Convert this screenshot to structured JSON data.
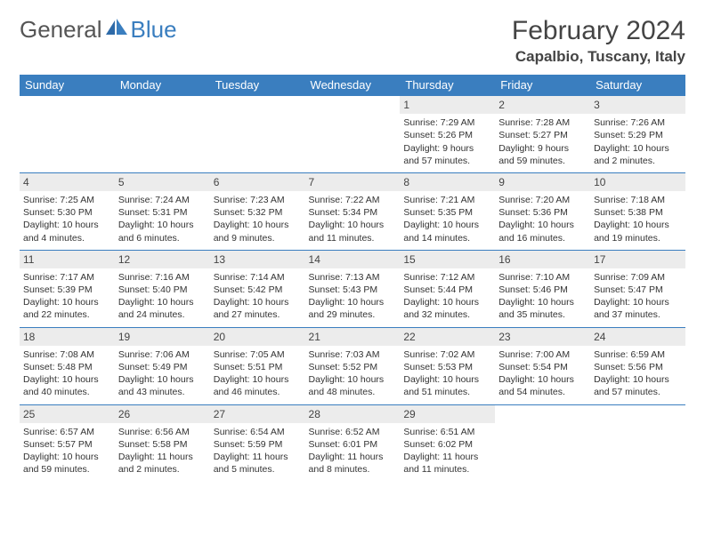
{
  "logo": {
    "text1": "General",
    "text2": "Blue"
  },
  "title": "February 2024",
  "location": "Capalbio, Tuscany, Italy",
  "colors": {
    "header_bg": "#3a7ebf",
    "header_text": "#ffffff",
    "daynum_bg": "#ececec",
    "border": "#3a7ebf"
  },
  "day_headers": [
    "Sunday",
    "Monday",
    "Tuesday",
    "Wednesday",
    "Thursday",
    "Friday",
    "Saturday"
  ],
  "weeks": [
    [
      null,
      null,
      null,
      null,
      {
        "num": "1",
        "sunrise": "Sunrise: 7:29 AM",
        "sunset": "Sunset: 5:26 PM",
        "daylight1": "Daylight: 9 hours",
        "daylight2": "and 57 minutes."
      },
      {
        "num": "2",
        "sunrise": "Sunrise: 7:28 AM",
        "sunset": "Sunset: 5:27 PM",
        "daylight1": "Daylight: 9 hours",
        "daylight2": "and 59 minutes."
      },
      {
        "num": "3",
        "sunrise": "Sunrise: 7:26 AM",
        "sunset": "Sunset: 5:29 PM",
        "daylight1": "Daylight: 10 hours",
        "daylight2": "and 2 minutes."
      }
    ],
    [
      {
        "num": "4",
        "sunrise": "Sunrise: 7:25 AM",
        "sunset": "Sunset: 5:30 PM",
        "daylight1": "Daylight: 10 hours",
        "daylight2": "and 4 minutes."
      },
      {
        "num": "5",
        "sunrise": "Sunrise: 7:24 AM",
        "sunset": "Sunset: 5:31 PM",
        "daylight1": "Daylight: 10 hours",
        "daylight2": "and 6 minutes."
      },
      {
        "num": "6",
        "sunrise": "Sunrise: 7:23 AM",
        "sunset": "Sunset: 5:32 PM",
        "daylight1": "Daylight: 10 hours",
        "daylight2": "and 9 minutes."
      },
      {
        "num": "7",
        "sunrise": "Sunrise: 7:22 AM",
        "sunset": "Sunset: 5:34 PM",
        "daylight1": "Daylight: 10 hours",
        "daylight2": "and 11 minutes."
      },
      {
        "num": "8",
        "sunrise": "Sunrise: 7:21 AM",
        "sunset": "Sunset: 5:35 PM",
        "daylight1": "Daylight: 10 hours",
        "daylight2": "and 14 minutes."
      },
      {
        "num": "9",
        "sunrise": "Sunrise: 7:20 AM",
        "sunset": "Sunset: 5:36 PM",
        "daylight1": "Daylight: 10 hours",
        "daylight2": "and 16 minutes."
      },
      {
        "num": "10",
        "sunrise": "Sunrise: 7:18 AM",
        "sunset": "Sunset: 5:38 PM",
        "daylight1": "Daylight: 10 hours",
        "daylight2": "and 19 minutes."
      }
    ],
    [
      {
        "num": "11",
        "sunrise": "Sunrise: 7:17 AM",
        "sunset": "Sunset: 5:39 PM",
        "daylight1": "Daylight: 10 hours",
        "daylight2": "and 22 minutes."
      },
      {
        "num": "12",
        "sunrise": "Sunrise: 7:16 AM",
        "sunset": "Sunset: 5:40 PM",
        "daylight1": "Daylight: 10 hours",
        "daylight2": "and 24 minutes."
      },
      {
        "num": "13",
        "sunrise": "Sunrise: 7:14 AM",
        "sunset": "Sunset: 5:42 PM",
        "daylight1": "Daylight: 10 hours",
        "daylight2": "and 27 minutes."
      },
      {
        "num": "14",
        "sunrise": "Sunrise: 7:13 AM",
        "sunset": "Sunset: 5:43 PM",
        "daylight1": "Daylight: 10 hours",
        "daylight2": "and 29 minutes."
      },
      {
        "num": "15",
        "sunrise": "Sunrise: 7:12 AM",
        "sunset": "Sunset: 5:44 PM",
        "daylight1": "Daylight: 10 hours",
        "daylight2": "and 32 minutes."
      },
      {
        "num": "16",
        "sunrise": "Sunrise: 7:10 AM",
        "sunset": "Sunset: 5:46 PM",
        "daylight1": "Daylight: 10 hours",
        "daylight2": "and 35 minutes."
      },
      {
        "num": "17",
        "sunrise": "Sunrise: 7:09 AM",
        "sunset": "Sunset: 5:47 PM",
        "daylight1": "Daylight: 10 hours",
        "daylight2": "and 37 minutes."
      }
    ],
    [
      {
        "num": "18",
        "sunrise": "Sunrise: 7:08 AM",
        "sunset": "Sunset: 5:48 PM",
        "daylight1": "Daylight: 10 hours",
        "daylight2": "and 40 minutes."
      },
      {
        "num": "19",
        "sunrise": "Sunrise: 7:06 AM",
        "sunset": "Sunset: 5:49 PM",
        "daylight1": "Daylight: 10 hours",
        "daylight2": "and 43 minutes."
      },
      {
        "num": "20",
        "sunrise": "Sunrise: 7:05 AM",
        "sunset": "Sunset: 5:51 PM",
        "daylight1": "Daylight: 10 hours",
        "daylight2": "and 46 minutes."
      },
      {
        "num": "21",
        "sunrise": "Sunrise: 7:03 AM",
        "sunset": "Sunset: 5:52 PM",
        "daylight1": "Daylight: 10 hours",
        "daylight2": "and 48 minutes."
      },
      {
        "num": "22",
        "sunrise": "Sunrise: 7:02 AM",
        "sunset": "Sunset: 5:53 PM",
        "daylight1": "Daylight: 10 hours",
        "daylight2": "and 51 minutes."
      },
      {
        "num": "23",
        "sunrise": "Sunrise: 7:00 AM",
        "sunset": "Sunset: 5:54 PM",
        "daylight1": "Daylight: 10 hours",
        "daylight2": "and 54 minutes."
      },
      {
        "num": "24",
        "sunrise": "Sunrise: 6:59 AM",
        "sunset": "Sunset: 5:56 PM",
        "daylight1": "Daylight: 10 hours",
        "daylight2": "and 57 minutes."
      }
    ],
    [
      {
        "num": "25",
        "sunrise": "Sunrise: 6:57 AM",
        "sunset": "Sunset: 5:57 PM",
        "daylight1": "Daylight: 10 hours",
        "daylight2": "and 59 minutes."
      },
      {
        "num": "26",
        "sunrise": "Sunrise: 6:56 AM",
        "sunset": "Sunset: 5:58 PM",
        "daylight1": "Daylight: 11 hours",
        "daylight2": "and 2 minutes."
      },
      {
        "num": "27",
        "sunrise": "Sunrise: 6:54 AM",
        "sunset": "Sunset: 5:59 PM",
        "daylight1": "Daylight: 11 hours",
        "daylight2": "and 5 minutes."
      },
      {
        "num": "28",
        "sunrise": "Sunrise: 6:52 AM",
        "sunset": "Sunset: 6:01 PM",
        "daylight1": "Daylight: 11 hours",
        "daylight2": "and 8 minutes."
      },
      {
        "num": "29",
        "sunrise": "Sunrise: 6:51 AM",
        "sunset": "Sunset: 6:02 PM",
        "daylight1": "Daylight: 11 hours",
        "daylight2": "and 11 minutes."
      },
      null,
      null
    ]
  ]
}
